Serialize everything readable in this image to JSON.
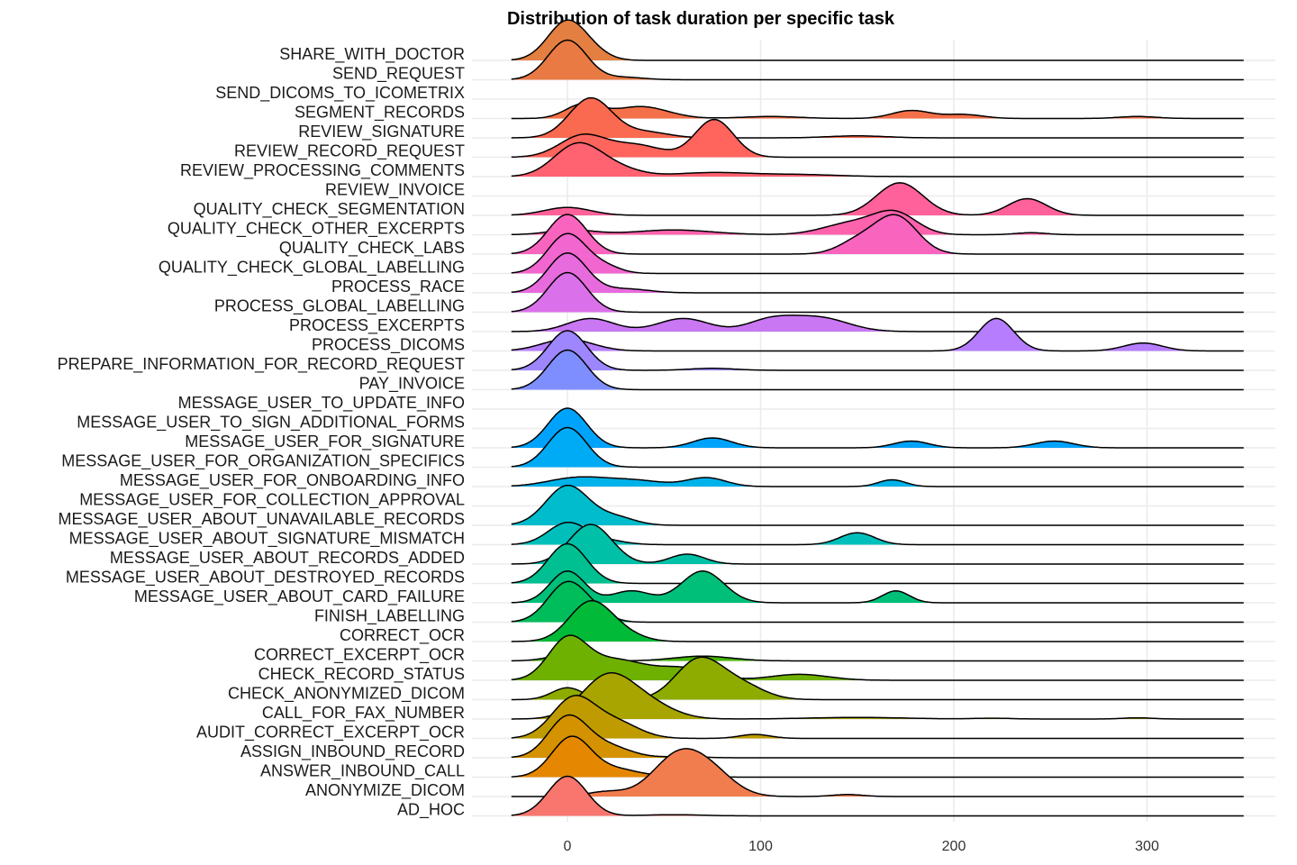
{
  "chart_data": {
    "type": "ridgeline",
    "title": "Distribution of task duration per specific task",
    "xlabel": "",
    "ylabel": "",
    "xlim": [
      -29,
      350
    ],
    "x_ticks": [
      0,
      100,
      200,
      300
    ],
    "grid": true,
    "legend": "none",
    "series": [
      {
        "name": "AD_HOC",
        "color": "#F8766D",
        "peaks": [
          [
            0,
            1.0,
            10
          ],
          [
            55,
            0.03,
            15
          ]
        ]
      },
      {
        "name": "ANONYMIZE_DICOM",
        "color": "#F17D4E",
        "peaks": [
          [
            57,
            1.0,
            13
          ],
          [
            75,
            0.5,
            12
          ],
          [
            20,
            0.12,
            10
          ],
          [
            145,
            0.05,
            8
          ]
        ]
      },
      {
        "name": "ANSWER_INBOUND_CALL",
        "color": "#E58700",
        "peaks": [
          [
            2,
            1.0,
            10
          ],
          [
            25,
            0.2,
            12
          ],
          [
            60,
            0.05,
            10
          ]
        ]
      },
      {
        "name": "ASSIGN_INBOUND_RECORD",
        "color": "#D49200",
        "peaks": [
          [
            0,
            1.0,
            10
          ],
          [
            20,
            0.3,
            12
          ],
          [
            60,
            0.03,
            10
          ]
        ]
      },
      {
        "name": "AUDIT_CORRECT_EXCERPT_OCR",
        "color": "#BF9B00",
        "peaks": [
          [
            3,
            1.0,
            11
          ],
          [
            25,
            0.4,
            12
          ],
          [
            97,
            0.1,
            8
          ]
        ]
      },
      {
        "name": "CALL_FOR_FAX_NUMBER",
        "color": "#A8A400",
        "peaks": [
          [
            20,
            1.0,
            13
          ],
          [
            40,
            0.4,
            14
          ],
          [
            150,
            0.04,
            25
          ],
          [
            295,
            0.03,
            8
          ],
          [
            220,
            0.02,
            10
          ]
        ]
      },
      {
        "name": "CHECK_ANONYMIZED_DICOM",
        "color": "#8EAB00",
        "peaks": [
          [
            0,
            0.3,
            8
          ],
          [
            68,
            1.0,
            12
          ],
          [
            90,
            0.35,
            12
          ]
        ]
      },
      {
        "name": "CHECK_RECORD_STATUS",
        "color": "#6FB100",
        "peaks": [
          [
            0,
            1.0,
            10
          ],
          [
            25,
            0.5,
            15
          ],
          [
            60,
            0.3,
            14
          ],
          [
            120,
            0.15,
            15
          ]
        ]
      },
      {
        "name": "CORRECT_EXCERPT_OCR",
        "color": "#45B600",
        "peaks": [
          [
            0,
            0.15,
            10
          ],
          [
            70,
            0.12,
            15
          ]
        ]
      },
      {
        "name": "CORRECT_OCR",
        "color": "#00BA38",
        "peaks": [
          [
            12,
            1.0,
            11
          ],
          [
            30,
            0.15,
            10
          ]
        ]
      },
      {
        "name": "FINISH_LABELLING",
        "color": "#00BD5C",
        "peaks": [
          [
            0,
            1.0,
            10
          ],
          [
            15,
            0.15,
            8
          ]
        ]
      },
      {
        "name": "MESSAGE_USER_ABOUT_CARD_FAILURE",
        "color": "#00BF79",
        "peaks": [
          [
            0,
            0.8,
            9
          ],
          [
            33,
            0.3,
            10
          ],
          [
            70,
            0.8,
            11
          ],
          [
            170,
            0.3,
            7
          ]
        ]
      },
      {
        "name": "MESSAGE_USER_ABOUT_DESTROYED_RECORDS",
        "color": "#00C091",
        "peaks": [
          [
            0,
            1.0,
            10
          ]
        ]
      },
      {
        "name": "MESSAGE_USER_ABOUT_RECORDS_ADDED",
        "color": "#00C0A7",
        "peaks": [
          [
            12,
            1.0,
            11
          ],
          [
            62,
            0.25,
            9
          ]
        ]
      },
      {
        "name": "MESSAGE_USER_ABOUT_SIGNATURE_MISMATCH",
        "color": "#00BFBB",
        "peaks": [
          [
            0,
            0.55,
            10
          ],
          [
            20,
            0.1,
            10
          ],
          [
            150,
            0.3,
            9
          ]
        ]
      },
      {
        "name": "MESSAGE_USER_ABOUT_UNAVAILABLE_RECORDS",
        "color": "#00BCCD",
        "peaks": [
          [
            0,
            1.0,
            11
          ],
          [
            25,
            0.2,
            10
          ]
        ]
      },
      {
        "name": "MESSAGE_USER_FOR_COLLECTION_APPROVAL",
        "color": "#00B8DD",
        "peaks": []
      },
      {
        "name": "MESSAGE_USER_FOR_ONBOARDING_INFO",
        "color": "#00B2EA",
        "peaks": [
          [
            5,
            0.22,
            15
          ],
          [
            35,
            0.15,
            15
          ],
          [
            72,
            0.22,
            10
          ],
          [
            168,
            0.17,
            7
          ]
        ]
      },
      {
        "name": "MESSAGE_USER_FOR_ORGANIZATION_SPECIFICS",
        "color": "#00ABF5",
        "peaks": [
          [
            0,
            1.0,
            10
          ]
        ]
      },
      {
        "name": "MESSAGE_USER_FOR_SIGNATURE",
        "color": "#00A3FC",
        "peaks": [
          [
            0,
            1.0,
            10
          ],
          [
            75,
            0.25,
            10
          ],
          [
            178,
            0.17,
            9
          ],
          [
            252,
            0.17,
            10
          ]
        ]
      },
      {
        "name": "MESSAGE_USER_TO_SIGN_ADDITIONAL_FORMS",
        "color": "#169BFF",
        "peaks": []
      },
      {
        "name": "MESSAGE_USER_TO_UPDATE_INFO",
        "color": "#5695FF",
        "peaks": []
      },
      {
        "name": "PAY_INVOICE",
        "color": "#7F8EFF",
        "peaks": [
          [
            0,
            1.0,
            10
          ]
        ]
      },
      {
        "name": "PREPARE_INFORMATION_FOR_RECORD_REQUEST",
        "color": "#9E86FF",
        "peaks": [
          [
            0,
            1.0,
            10
          ],
          [
            75,
            0.05,
            12
          ]
        ]
      },
      {
        "name": "PROCESS_DICOMS",
        "color": "#B67EFF",
        "peaks": [
          [
            0,
            0.3,
            13
          ],
          [
            222,
            0.82,
            9
          ],
          [
            298,
            0.2,
            10
          ]
        ]
      },
      {
        "name": "PROCESS_EXCERPTS",
        "color": "#CA77F4",
        "peaks": [
          [
            12,
            0.33,
            12
          ],
          [
            60,
            0.33,
            13
          ],
          [
            105,
            0.28,
            12
          ],
          [
            130,
            0.35,
            15
          ]
        ]
      },
      {
        "name": "PROCESS_GLOBAL_LABELLING",
        "color": "#DB71EA",
        "peaks": [
          [
            0,
            1.0,
            10
          ]
        ]
      },
      {
        "name": "PROCESS_RACE",
        "color": "#E86BDE",
        "peaks": [
          [
            0,
            1.0,
            10
          ],
          [
            30,
            0.1,
            12
          ]
        ]
      },
      {
        "name": "QUALITY_CHECK_GLOBAL_LABELLING",
        "color": "#F266D0",
        "peaks": [
          [
            0,
            1.0,
            10
          ],
          [
            20,
            0.15,
            8
          ]
        ]
      },
      {
        "name": "QUALITY_CHECK_LABS",
        "color": "#F964BF",
        "peaks": [
          [
            0,
            1.0,
            10
          ],
          [
            170,
            0.95,
            11
          ],
          [
            150,
            0.3,
            10
          ]
        ]
      },
      {
        "name": "QUALITY_CHECK_OTHER_EXCERPTS",
        "color": "#FD62AD",
        "peaks": [
          [
            2,
            0.12,
            12
          ],
          [
            55,
            0.12,
            20
          ],
          [
            148,
            0.3,
            15
          ],
          [
            170,
            0.5,
            11
          ],
          [
            240,
            0.05,
            8
          ]
        ]
      },
      {
        "name": "QUALITY_CHECK_SEGMENTATION",
        "color": "#FF619A",
        "peaks": [
          [
            0,
            0.2,
            12
          ],
          [
            172,
            0.82,
            12
          ],
          [
            238,
            0.42,
            10
          ]
        ]
      },
      {
        "name": "REVIEW_INVOICE",
        "color": "#FF6286",
        "peaks": []
      },
      {
        "name": "REVIEW_PROCESSING_COMMENTS",
        "color": "#FF6271",
        "peaks": [
          [
            5,
            0.8,
            12
          ],
          [
            25,
            0.2,
            12
          ],
          [
            75,
            0.1,
            20
          ],
          [
            120,
            0.05,
            20
          ]
        ]
      },
      {
        "name": "REVIEW_RECORD_REQUEST",
        "color": "#FF645D",
        "peaks": [
          [
            8,
            0.55,
            12
          ],
          [
            36,
            0.3,
            13
          ],
          [
            76,
            0.95,
            10
          ]
        ]
      },
      {
        "name": "REVIEW_SIGNATURE",
        "color": "#FA6A50",
        "peaks": [
          [
            12,
            1.0,
            11
          ],
          [
            40,
            0.15,
            12
          ],
          [
            150,
            0.05,
            15
          ]
        ]
      },
      {
        "name": "SEGMENT_RECORDS",
        "color": "#F47048",
        "peaks": [
          [
            8,
            0.35,
            9
          ],
          [
            38,
            0.3,
            14
          ],
          [
            105,
            0.05,
            15
          ],
          [
            178,
            0.2,
            10
          ],
          [
            205,
            0.1,
            10
          ],
          [
            295,
            0.05,
            10
          ]
        ]
      },
      {
        "name": "SEND_DICOMS_TO_ICOMETRIX",
        "color": "#EE7545",
        "peaks": []
      },
      {
        "name": "SEND_REQUEST",
        "color": "#E97A43",
        "peaks": [
          [
            0,
            1.0,
            10
          ],
          [
            30,
            0.06,
            10
          ]
        ]
      },
      {
        "name": "SHARE_WITH_DOCTOR",
        "color": "#E47F42",
        "peaks": [
          [
            0,
            1.0,
            10
          ],
          [
            15,
            0.1,
            8
          ]
        ]
      }
    ]
  }
}
